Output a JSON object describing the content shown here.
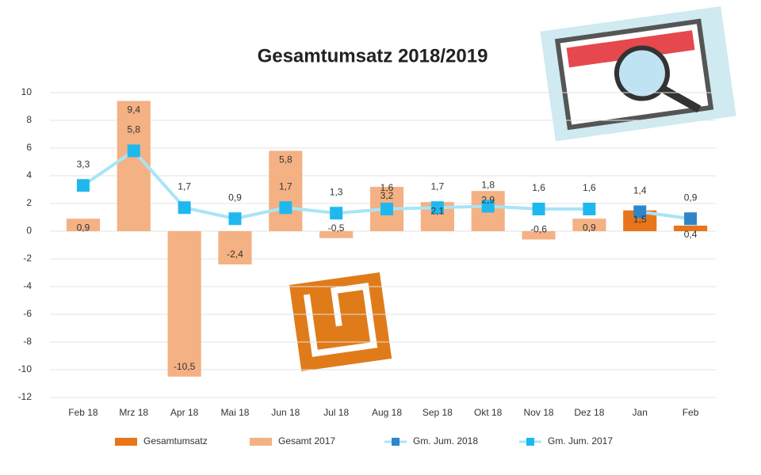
{
  "chart_data": {
    "type": "bar",
    "title": "Gesamtumsatz 2018/2019",
    "categories": [
      "Feb 18",
      "Mrz 18",
      "Apr 18",
      "Mai 18",
      "Jun 18",
      "Jul 18",
      "Aug 18",
      "Sep 18",
      "Okt 18",
      "Nov 18",
      "Dez 18",
      "Jan",
      "Feb"
    ],
    "ylim": [
      -12,
      10
    ],
    "yticks": [
      -12,
      -10,
      -8,
      -6,
      -4,
      -2,
      0,
      2,
      4,
      6,
      8,
      10
    ],
    "grid": true,
    "series": [
      {
        "name": "Gesamtumsatz",
        "type": "bar",
        "color": "#e8751a",
        "values": [
          null,
          null,
          null,
          null,
          null,
          null,
          null,
          null,
          null,
          null,
          null,
          1.5,
          0.4
        ],
        "value_labels": [
          null,
          null,
          null,
          null,
          null,
          null,
          null,
          null,
          null,
          null,
          null,
          "1,5",
          "0,4"
        ]
      },
      {
        "name": "Gesamt 2017",
        "type": "bar",
        "color": "#f4b183",
        "values": [
          0.9,
          9.4,
          -10.5,
          -2.4,
          5.8,
          -0.5,
          3.2,
          2.1,
          2.9,
          -0.6,
          0.9,
          null,
          null
        ],
        "value_labels": [
          "0,9",
          "9,4",
          "-10,5",
          "-2,4",
          "5,8",
          "-0,5",
          "3,2",
          "2,1",
          "2,9",
          "-0,6",
          "0,9",
          null,
          null
        ]
      },
      {
        "name": "Gm. Jum. 2018",
        "type": "line",
        "color": "#2e86c8",
        "values": [
          null,
          null,
          null,
          null,
          null,
          null,
          null,
          null,
          null,
          null,
          null,
          1.4,
          0.9
        ],
        "value_labels": [
          null,
          null,
          null,
          null,
          null,
          null,
          null,
          null,
          null,
          null,
          null,
          "1,4",
          "0,9"
        ]
      },
      {
        "name": "Gm. Jum. 2017",
        "type": "line",
        "color": "#1fb8ee",
        "values": [
          3.3,
          5.8,
          1.7,
          0.9,
          1.7,
          1.3,
          1.6,
          1.7,
          1.8,
          1.6,
          1.6,
          null,
          null
        ],
        "value_labels": [
          "3,3",
          "5,8",
          "1,7",
          "0,9",
          "1,7",
          "1,3",
          "1,6",
          "1,7",
          "1,8",
          "1,6",
          "1,6",
          null,
          null
        ]
      }
    ]
  }
}
